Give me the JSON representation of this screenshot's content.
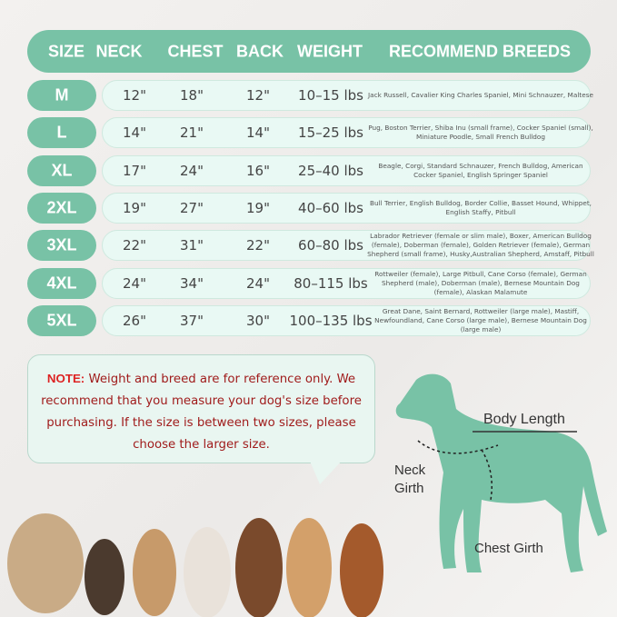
{
  "colors": {
    "accent": "#78c2a6",
    "row_bg": "#e9f9f4",
    "note_text": "#a01c1c"
  },
  "header": [
    "SIZE",
    "NECK",
    "CHEST",
    "BACK",
    "WEIGHT",
    "RECOMMEND BREEDS"
  ],
  "rows": [
    {
      "size": "M",
      "neck": "12\"",
      "chest": "18\"",
      "back": "12\"",
      "weight": "10–15 lbs",
      "breeds": "Jack Russell, Cavalier King Charles Spaniel, Mini Schnauzer, Maltese"
    },
    {
      "size": "L",
      "neck": "14\"",
      "chest": "21\"",
      "back": "14\"",
      "weight": "15–25 lbs",
      "breeds": "Pug, Boston Terrier, Shiba Inu (small frame), Cocker Spaniel (small), Miniature Poodle, Small French Bulldog"
    },
    {
      "size": "XL",
      "neck": "17\"",
      "chest": "24\"",
      "back": "16\"",
      "weight": "25–40 lbs",
      "breeds": "Beagle, Corgi, Standard Schnauzer, French Bulldog, American Cocker Spaniel, English Springer Spaniel"
    },
    {
      "size": "2XL",
      "neck": "19\"",
      "chest": "27\"",
      "back": "19\"",
      "weight": "40–60 lbs",
      "breeds": "Bull Terrier, English Bulldog, Border Collie, Basset Hound, Whippet, English Staffy, Pitbull"
    },
    {
      "size": "3XL",
      "neck": "22\"",
      "chest": "31\"",
      "back": "22\"",
      "weight": "60–80 lbs",
      "breeds": "Labrador Retriever (female or slim male), Boxer, American Bulldog (female), Doberman (female), Golden Retriever (female), German Shepherd (small frame), Husky,Australian Shepherd, Amstaff, Pitbull"
    },
    {
      "size": "4XL",
      "neck": "24\"",
      "chest": "34\"",
      "back": "24\"",
      "weight": "80–115 lbs",
      "breeds": "Rottweiler (female), Large Pitbull, Cane Corso (female), German Shepherd (male), Doberman (male), Bernese Mountain Dog (female), Alaskan Malamute"
    },
    {
      "size": "5XL",
      "neck": "26\"",
      "chest": "37\"",
      "back": "30\"",
      "weight": "100–135 lbs",
      "breeds": "Great Dane, Saint Bernard, Rottweiler (large male), Mastiff, Newfoundland, Cane Corso (large male), Bernese Mountain Dog (large male)"
    }
  ],
  "note": {
    "label": "NOTE:",
    "text": "Weight and breed are for reference only. We recommend that you measure your dog's size before purchasing. If the size is between two sizes, please choose the larger size."
  },
  "diagram": {
    "body_length": "Body Length",
    "neck_girth": "Neck Girth",
    "chest_girth": "Chest Girth"
  }
}
